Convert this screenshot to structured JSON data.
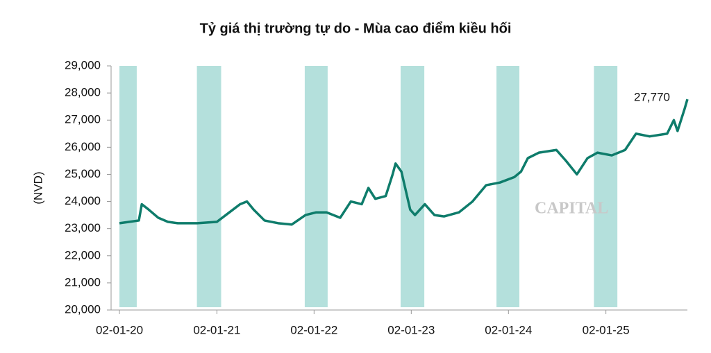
{
  "chart_data": {
    "type": "line",
    "title": "Tỷ giá thị trường tự do - Mùa cao điểm kiều hối",
    "y_label": "(NVD)",
    "watermark": "CAPITAL",
    "annotation": "27,770",
    "x": [
      "2020-01-02",
      "2020-02-08",
      "2020-03-15",
      "2020-03-26",
      "2020-04-21",
      "2020-05-27",
      "2020-07-02",
      "2020-08-08",
      "2020-10-20",
      "2021-01-02",
      "2021-02-18",
      "2021-03-30",
      "2021-04-25",
      "2021-05-20",
      "2021-06-30",
      "2021-08-20",
      "2021-10-10",
      "2021-12-01",
      "2022-01-10",
      "2022-02-18",
      "2022-04-10",
      "2022-05-20",
      "2022-06-30",
      "2022-07-25",
      "2022-08-20",
      "2022-09-28",
      "2022-10-24",
      "2022-11-04",
      "2022-11-26",
      "2022-12-29",
      "2023-01-16",
      "2023-02-22",
      "2023-03-30",
      "2023-05-05",
      "2023-06-30",
      "2023-08-20",
      "2023-10-10",
      "2023-12-01",
      "2024-01-24",
      "2024-02-18",
      "2024-03-15",
      "2024-04-25",
      "2024-06-30",
      "2024-08-05",
      "2024-09-15",
      "2024-10-25",
      "2024-12-01",
      "2025-01-24",
      "2025-03-15",
      "2025-04-25",
      "2025-06-15",
      "2025-08-20",
      "2025-09-14",
      "2025-09-28",
      "2025-10-24",
      "2025-11-04"
    ],
    "series": [
      {
        "name": "Tỷ giá",
        "color": "#0e7c6b",
        "values": [
          23200,
          23250,
          23300,
          23900,
          23700,
          23400,
          23250,
          23200,
          23200,
          23250,
          23600,
          23900,
          24000,
          23700,
          23300,
          23200,
          23150,
          23500,
          23600,
          23600,
          23400,
          24000,
          23900,
          24500,
          24100,
          24200,
          25000,
          25400,
          25100,
          23700,
          23500,
          23900,
          23500,
          23450,
          23600,
          24000,
          24600,
          24700,
          24900,
          25100,
          25600,
          25800,
          25900,
          25500,
          25000,
          25600,
          25800,
          25700,
          25900,
          26500,
          26400,
          26500,
          27000,
          26600,
          27400,
          27770
        ]
      }
    ],
    "bands": {
      "color": "#b4e0dc",
      "ranges": [
        [
          "2020-01-02",
          "2020-03-07"
        ],
        [
          "2020-10-19",
          "2021-01-18"
        ],
        [
          "2021-11-28",
          "2022-02-22"
        ],
        [
          "2022-11-23",
          "2023-02-20"
        ],
        [
          "2023-11-18",
          "2024-02-12"
        ],
        [
          "2024-11-18",
          "2025-02-14"
        ]
      ]
    },
    "xlim": [
      "2020-01-02",
      "2025-11-04"
    ],
    "xticks": [
      {
        "value": "2020-01-02",
        "label": "02-01-20"
      },
      {
        "value": "2021-01-02",
        "label": "02-01-21"
      },
      {
        "value": "2022-01-02",
        "label": "02-01-22"
      },
      {
        "value": "2023-01-02",
        "label": "02-01-23"
      },
      {
        "value": "2024-01-02",
        "label": "02-01-24"
      },
      {
        "value": "2025-01-02",
        "label": "02-01-25"
      }
    ],
    "ylim": [
      20000,
      29000
    ],
    "yticks": [
      {
        "value": 20000,
        "label": "20,000"
      },
      {
        "value": 21000,
        "label": "21,000"
      },
      {
        "value": 22000,
        "label": "22,000"
      },
      {
        "value": 23000,
        "label": "23,000"
      },
      {
        "value": 24000,
        "label": "24,000"
      },
      {
        "value": 25000,
        "label": "25,000"
      },
      {
        "value": 26000,
        "label": "26,000"
      },
      {
        "value": 27000,
        "label": "27,000"
      },
      {
        "value": 28000,
        "label": "28,000"
      },
      {
        "value": 29000,
        "label": "29,000"
      }
    ]
  }
}
